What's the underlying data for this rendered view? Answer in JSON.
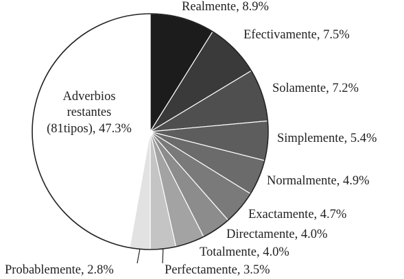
{
  "chart_data": {
    "type": "pie",
    "slices": [
      {
        "label": "Realmente, 8.9%",
        "value": 8.9,
        "color": "#1c1c1c"
      },
      {
        "label": "Efectivamente, 7.5%",
        "value": 7.5,
        "color": "#3a3a3a"
      },
      {
        "label": "Solamente, 7.2%",
        "value": 7.2,
        "color": "#4f4f4f"
      },
      {
        "label": "Simplemente, 5.4%",
        "value": 5.4,
        "color": "#5d5d5d"
      },
      {
        "label": "Normalmente, 4.9%",
        "value": 4.9,
        "color": "#6b6b6b"
      },
      {
        "label": "Exactamente, 4.7%",
        "value": 4.7,
        "color": "#7a7a7a"
      },
      {
        "label": "Directamente, 4.0%",
        "value": 4.0,
        "color": "#8c8c8c"
      },
      {
        "label": "Totalmente, 4.0%",
        "value": 4.0,
        "color": "#a3a3a3"
      },
      {
        "label": "Perfectamente, 3.5%",
        "value": 3.5,
        "color": "#c4c4c4"
      },
      {
        "label": "Probablemente, 2.8%",
        "value": 2.8,
        "color": "#e2e2e2"
      },
      {
        "label": [
          "Adverbios",
          "restantes",
          "(81tipos), 47.3%"
        ],
        "value": 47.3,
        "color": "#ffffff"
      }
    ]
  }
}
